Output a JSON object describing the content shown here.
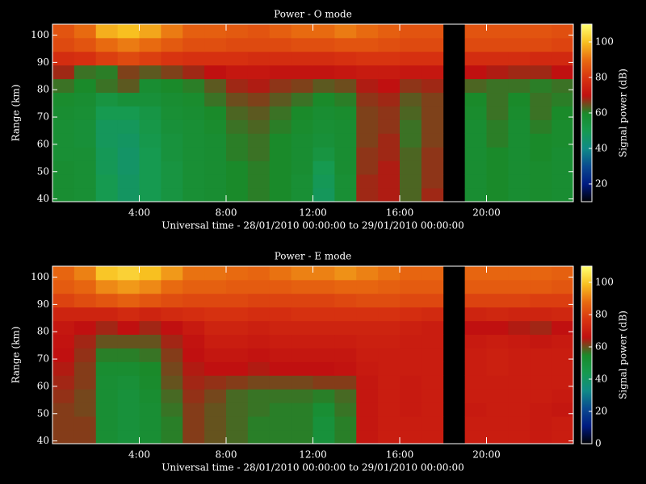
{
  "chart_data": [
    {
      "type": "heatmap",
      "title": "Power - O mode",
      "x_label": "Universal time - 28/01/2010 00:00:00 to 29/01/2010 00:00:00",
      "y_label": "Range (km)",
      "colorbar_label": "Signal power (dB)",
      "x": [
        0.5,
        1.5,
        2.5,
        3.5,
        4.5,
        5.5,
        6.5,
        7.5,
        8.5,
        9.5,
        10.5,
        11.5,
        12.5,
        13.5,
        14.5,
        15.5,
        16.5,
        17.5,
        18.5,
        19.5,
        20.5,
        21.5,
        22.5,
        23.5
      ],
      "y": [
        41.5,
        46.5,
        51.5,
        56.5,
        61.5,
        66.5,
        71.5,
        76.5,
        81.5,
        86.5,
        91.5,
        96.5,
        101.5
      ],
      "z": [
        [
          58,
          57,
          50,
          47,
          50,
          54,
          57,
          58,
          60,
          61,
          60,
          57,
          48,
          57,
          68,
          69,
          63,
          68,
          null,
          58,
          60,
          58,
          59,
          58
        ],
        [
          58,
          57,
          50,
          47,
          50,
          54,
          57,
          58,
          60,
          61,
          60,
          57,
          49,
          57,
          68,
          69,
          63,
          67,
          null,
          58,
          60,
          58,
          59,
          58
        ],
        [
          58,
          57,
          49,
          46,
          50,
          54,
          57,
          58,
          60,
          61,
          60,
          58,
          50,
          58,
          67,
          69,
          63,
          67,
          null,
          58,
          60,
          58,
          59,
          58
        ],
        [
          57,
          57,
          49,
          46,
          50,
          55,
          57,
          58,
          61,
          62,
          60,
          58,
          54,
          58,
          67,
          68,
          63,
          67,
          null,
          58,
          60,
          58,
          60,
          58
        ],
        [
          57,
          56,
          48,
          47,
          51,
          55,
          57,
          58,
          61,
          62,
          60,
          58,
          56,
          58,
          66,
          68,
          62,
          66,
          null,
          58,
          61,
          58,
          60,
          59
        ],
        [
          57,
          56,
          48,
          48,
          52,
          56,
          57,
          59,
          62,
          63,
          61,
          59,
          57,
          58,
          66,
          67,
          62,
          66,
          null,
          58,
          61,
          58,
          61,
          59
        ],
        [
          58,
          57,
          50,
          50,
          53,
          57,
          58,
          60,
          63,
          64,
          62,
          60,
          58,
          59,
          66,
          67,
          63,
          66,
          null,
          59,
          62,
          59,
          62,
          60
        ],
        [
          59,
          58,
          54,
          56,
          56,
          58,
          59,
          62,
          65,
          66,
          64,
          62,
          60,
          61,
          67,
          68,
          64,
          66,
          null,
          60,
          62,
          60,
          62,
          61
        ],
        [
          62,
          60,
          62,
          64,
          58,
          60,
          61,
          64,
          68,
          69,
          67,
          66,
          64,
          65,
          69,
          70,
          67,
          68,
          null,
          63,
          62,
          62,
          61,
          62
        ],
        [
          68,
          62,
          61,
          66,
          64,
          66,
          68,
          70,
          72,
          72,
          71,
          71,
          71,
          72,
          73,
          73,
          72,
          72,
          null,
          70,
          69,
          68,
          68,
          70
        ],
        [
          78,
          79,
          82,
          84,
          82,
          80,
          79,
          79,
          79,
          78,
          78,
          78,
          78,
          79,
          80,
          80,
          79,
          79,
          null,
          78,
          78,
          78,
          77,
          77
        ],
        [
          84,
          86,
          90,
          92,
          90,
          87,
          85,
          85,
          84,
          84,
          84,
          85,
          85,
          86,
          86,
          85,
          84,
          84,
          null,
          84,
          84,
          84,
          84,
          83
        ],
        [
          86,
          90,
          98,
          100,
          97,
          92,
          88,
          88,
          87,
          86,
          88,
          90,
          90,
          92,
          90,
          88,
          86,
          86,
          null,
          86,
          86,
          86,
          86,
          85
        ]
      ],
      "xlim": [
        0,
        24
      ],
      "ylim": [
        39,
        104
      ],
      "xticks": [
        {
          "value": 4,
          "label": "4:00"
        },
        {
          "value": 8,
          "label": "8:00"
        },
        {
          "value": 12,
          "label": "12:00"
        },
        {
          "value": 16,
          "label": "16:00"
        },
        {
          "value": 20,
          "label": "20:00"
        }
      ],
      "yticks": [
        40,
        50,
        60,
        70,
        80,
        90,
        100
      ],
      "zlim": [
        10,
        110
      ],
      "zticks": [
        20,
        40,
        60,
        80,
        100
      ],
      "colorscale": [
        "#000000",
        "#001a80",
        "#0a4a90",
        "#108a88",
        "#169a50",
        "#1a8a2a",
        "#c01010",
        "#d83410",
        "#e86a10",
        "#f8c020",
        "#ffff70"
      ]
    },
    {
      "type": "heatmap",
      "title": "Power - E mode",
      "x_label": "Universal time - 28/01/2010 00:00:00 to 29/01/2010 00:00:00",
      "y_label": "Range (km)",
      "colorbar_label": "Signal power (dB)",
      "x": [
        0.5,
        1.5,
        2.5,
        3.5,
        4.5,
        5.5,
        6.5,
        7.5,
        8.5,
        9.5,
        10.5,
        11.5,
        12.5,
        13.5,
        14.5,
        15.5,
        16.5,
        17.5,
        18.5,
        19.5,
        20.5,
        21.5,
        22.5,
        23.5
      ],
      "y": [
        41.5,
        46.5,
        51.5,
        56.5,
        61.5,
        66.5,
        71.5,
        76.5,
        81.5,
        86.5,
        91.5,
        96.5,
        101.5
      ],
      "z": [
        [
          62,
          62,
          52,
          50,
          52,
          56,
          62,
          60,
          58,
          56,
          56,
          56,
          50,
          56,
          68,
          70,
          70,
          70,
          null,
          70,
          70,
          70,
          69,
          70
        ],
        [
          62,
          62,
          52,
          50,
          52,
          56,
          62,
          60,
          58,
          56,
          56,
          56,
          50,
          56,
          68,
          70,
          70,
          70,
          null,
          70,
          70,
          70,
          69,
          70
        ],
        [
          62,
          61,
          52,
          50,
          52,
          57,
          62,
          60,
          58,
          57,
          56,
          56,
          52,
          57,
          68,
          70,
          69,
          70,
          null,
          69,
          70,
          70,
          69,
          68
        ],
        [
          63,
          61,
          52,
          50,
          53,
          58,
          63,
          61,
          58,
          57,
          57,
          57,
          56,
          58,
          68,
          70,
          69,
          70,
          null,
          70,
          70,
          70,
          70,
          69
        ],
        [
          64,
          62,
          52,
          51,
          54,
          60,
          64,
          63,
          62,
          61,
          61,
          61,
          62,
          62,
          68,
          70,
          69,
          70,
          null,
          70,
          70,
          70,
          70,
          70
        ],
        [
          65,
          62,
          53,
          53,
          55,
          61,
          65,
          66,
          66,
          65,
          66,
          66,
          66,
          67,
          69,
          70,
          70,
          70,
          null,
          70,
          71,
          70,
          70,
          70
        ],
        [
          66,
          63,
          56,
          56,
          57,
          62,
          66,
          68,
          68,
          67,
          68,
          68,
          68,
          68,
          70,
          70,
          70,
          70,
          null,
          70,
          71,
          70,
          70,
          70
        ],
        [
          67,
          64,
          60,
          60,
          60,
          64,
          67,
          70,
          70,
          69,
          70,
          70,
          70,
          70,
          71,
          71,
          70,
          70,
          null,
          69,
          70,
          69,
          68,
          69
        ],
        [
          68,
          66,
          64,
          66,
          64,
          66,
          69,
          72,
          72,
          71,
          72,
          72,
          72,
          72,
          72,
          72,
          71,
          70,
          null,
          66,
          66,
          65,
          64,
          66
        ],
        [
          72,
          72,
          72,
          74,
          72,
          74,
          75,
          76,
          76,
          75,
          75,
          76,
          76,
          76,
          76,
          76,
          75,
          74,
          null,
          72,
          73,
          72,
          72,
          73
        ],
        [
          80,
          82,
          84,
          86,
          84,
          82,
          81,
          81,
          81,
          80,
          80,
          80,
          80,
          81,
          82,
          82,
          81,
          81,
          null,
          80,
          80,
          80,
          79,
          79
        ],
        [
          85,
          87,
          92,
          94,
          92,
          88,
          86,
          86,
          85,
          85,
          85,
          86,
          86,
          87,
          87,
          86,
          85,
          85,
          null,
          85,
          85,
          85,
          85,
          84
        ],
        [
          87,
          91,
          100,
          102,
          99,
          94,
          89,
          89,
          88,
          87,
          89,
          91,
          91,
          93,
          91,
          89,
          87,
          87,
          null,
          87,
          87,
          87,
          87,
          86
        ]
      ],
      "xlim": [
        0,
        24
      ],
      "ylim": [
        39,
        104
      ],
      "xticks": [
        {
          "value": 4,
          "label": "4:00"
        },
        {
          "value": 8,
          "label": "8:00"
        },
        {
          "value": 12,
          "label": "12:00"
        },
        {
          "value": 16,
          "label": "16:00"
        },
        {
          "value": 20,
          "label": "20:00"
        }
      ],
      "yticks": [
        40,
        50,
        60,
        70,
        80,
        90,
        100
      ],
      "zlim": [
        0,
        110
      ],
      "zticks": [
        0,
        20,
        40,
        60,
        80,
        100
      ],
      "colorscale": [
        "#000000",
        "#001a80",
        "#0a4a90",
        "#108a88",
        "#169a50",
        "#1a8a2a",
        "#c01010",
        "#d83410",
        "#e86a10",
        "#f8c020",
        "#ffff70"
      ]
    }
  ]
}
